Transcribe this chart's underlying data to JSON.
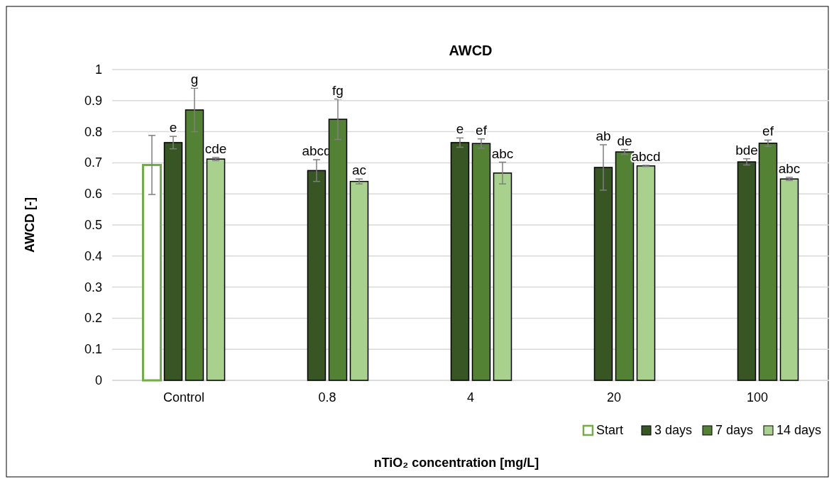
{
  "chart_data": {
    "type": "bar",
    "title": "AWCD",
    "xlabel": "nTiO₂ concentration [mg/L]",
    "ylabel": "AWCD [-]",
    "categories": [
      "Control",
      "0.8",
      "4",
      "20",
      "100"
    ],
    "series": [
      {
        "name": "Start",
        "color": "#70ad47",
        "values": [
          0.693,
          null,
          null,
          null,
          null
        ],
        "errors": [
          0.095,
          null,
          null,
          null,
          null
        ]
      },
      {
        "name": "3 days",
        "color": "#375623",
        "values": [
          0.765,
          0.675,
          0.765,
          0.685,
          0.703
        ],
        "errors": [
          0.02,
          0.035,
          0.015,
          0.073,
          0.01
        ],
        "value_labels": [
          "e",
          "abcd",
          "e",
          "ab",
          "bde"
        ]
      },
      {
        "name": "7 days",
        "color": "#548235",
        "values": [
          0.87,
          0.84,
          0.762,
          0.735,
          0.763
        ],
        "errors": [
          0.07,
          0.065,
          0.015,
          0.008,
          0.01
        ],
        "value_labels": [
          "g",
          "fg",
          "ef",
          "de",
          "ef"
        ]
      },
      {
        "name": "14 days",
        "color": "#a9d18e",
        "values": [
          0.712,
          0.64,
          0.667,
          0.69,
          0.648
        ],
        "errors": [
          0.005,
          0.008,
          0.035,
          0.002,
          0.005
        ],
        "value_labels": [
          "cde",
          "ac",
          "abc",
          "abcd",
          "abc"
        ]
      }
    ],
    "ylim": [
      0,
      1
    ],
    "yticks": [
      0,
      0.1,
      0.2,
      0.3,
      0.4,
      0.5,
      0.6,
      0.7,
      0.8,
      0.9,
      1
    ],
    "grid": "y",
    "legend": "bottom right"
  }
}
